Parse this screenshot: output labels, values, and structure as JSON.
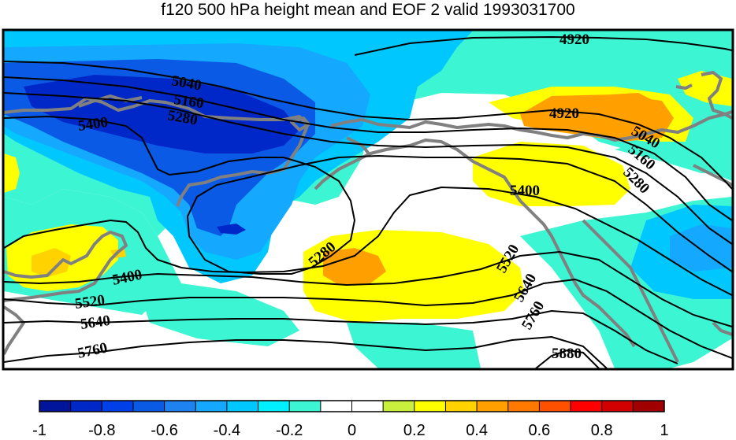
{
  "title": "f120 500 hPa height mean and EOF 2 valid 1993031700",
  "map": {
    "variable": "500 hPa height mean and EOF 2",
    "forecast": "f120",
    "valid": "1993031700",
    "contour_labels": [
      "4920",
      "5040",
      "5160",
      "5280",
      "5400",
      "5520",
      "5640",
      "5760",
      "5880"
    ]
  },
  "colorbar": {
    "tick_labels": [
      "-1",
      "-0.8",
      "-0.6",
      "-0.4",
      "-0.2",
      "0",
      "0.2",
      "0.4",
      "0.6",
      "0.8",
      "1"
    ],
    "range": [
      -1,
      1
    ],
    "colors": [
      "#00149c",
      "#0028c8",
      "#0040e8",
      "#0a5ae6",
      "#1e82f0",
      "#14a8ff",
      "#00c8ff",
      "#00f0ff",
      "#3cf5d2",
      "#ffffff",
      "#ffffff",
      "#c8f03c",
      "#ffff00",
      "#ffd200",
      "#ffa000",
      "#ff7800",
      "#ff5000",
      "#ff0000",
      "#d20000",
      "#a00000"
    ]
  }
}
